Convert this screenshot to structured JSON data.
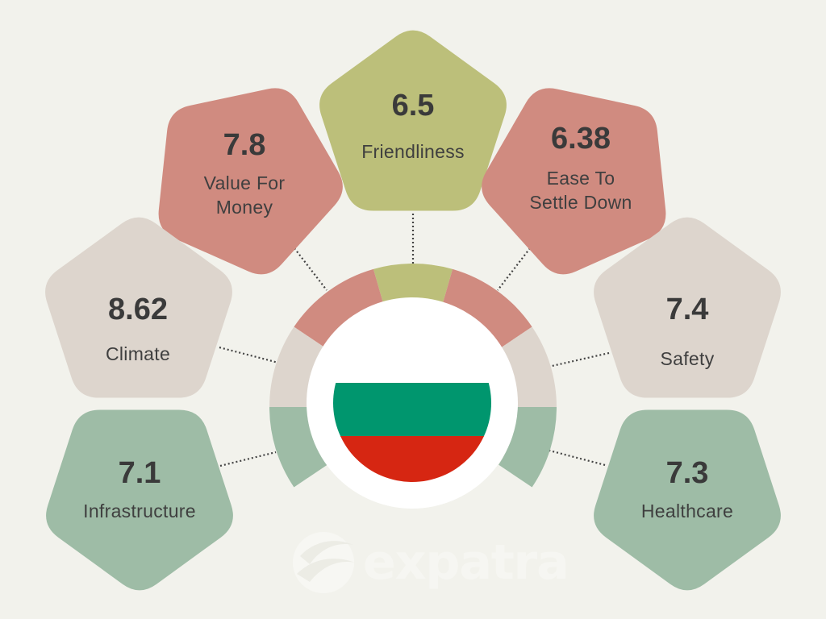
{
  "infographic": {
    "country": "Bulgaria",
    "flag_colors": {
      "white": "#ffffff",
      "green": "#00966e",
      "red": "#d62612"
    },
    "colors": {
      "background": "#f2f2ec",
      "olive": "#bcbf7a",
      "rose": "#d08b80",
      "beige": "#ddd5cd",
      "sage": "#9ebca6"
    },
    "cards": [
      {
        "id": "friendliness",
        "value": "6.5",
        "label": "Friendliness",
        "color": "olive"
      },
      {
        "id": "value-for-money",
        "value": "7.8",
        "label": "Value For Money",
        "label_lines": [
          "Value For",
          "Money"
        ],
        "color": "rose"
      },
      {
        "id": "ease-to-settle-down",
        "value": "6.38",
        "label": "Ease To Settle Down",
        "label_lines": [
          "Ease To",
          "Settle Down"
        ],
        "color": "rose"
      },
      {
        "id": "climate",
        "value": "8.62",
        "label": "Climate",
        "color": "beige"
      },
      {
        "id": "safety",
        "value": "7.4",
        "label": "Safety",
        "color": "beige"
      },
      {
        "id": "infrastructure",
        "value": "7.1",
        "label": "Infrastructure",
        "color": "sage"
      },
      {
        "id": "healthcare",
        "value": "7.3",
        "label": "Healthcare",
        "color": "sage"
      }
    ]
  },
  "chart_data": {
    "type": "table",
    "title": "",
    "categories": [
      "Friendliness",
      "Value For Money",
      "Ease To Settle Down",
      "Climate",
      "Safety",
      "Infrastructure",
      "Healthcare"
    ],
    "values": [
      6.5,
      7.8,
      6.38,
      8.62,
      7.4,
      7.1,
      7.3
    ]
  },
  "watermark": {
    "text": "expatra"
  }
}
